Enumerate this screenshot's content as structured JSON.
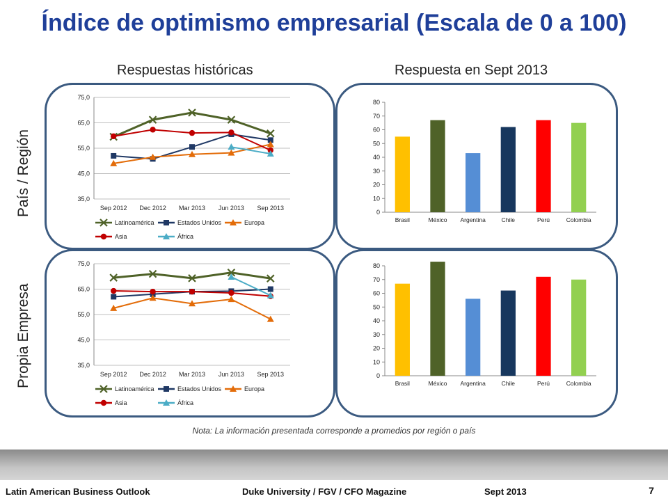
{
  "title": "Índice de optimismo empresarial (Escala de 0 a 100)",
  "subtitles": {
    "left": "Respuestas históricas",
    "right": "Respuesta en Sept 2013"
  },
  "side_labels": {
    "top": "País / Región",
    "bottom": "Propia Empresa"
  },
  "note": "Nota: La información presentada corresponde a promedios por región o país",
  "footer": {
    "left": "Latin American Business Outlook",
    "center": "Duke University / FGV / CFO Magazine",
    "right": "Sept 2013",
    "page": "7"
  },
  "colors": {
    "Latinoamérica": "#4f6228",
    "Estados Unidos": "#1f3864",
    "Europa": "#e36c09",
    "Asia": "#c00000",
    "África": "#4bacc6",
    "panel_border": "#3b5a80",
    "title": "#1f3f99"
  },
  "chart_data": [
    {
      "id": "hist-pais",
      "type": "line",
      "categories": [
        "Sep 2012",
        "Dec 2012",
        "Mar 2013",
        "Jun 2013",
        "Sep 2013"
      ],
      "ylim": [
        35,
        75
      ],
      "yticks": [
        "75,0",
        "65,0",
        "55,0",
        "45,0",
        "35,0"
      ],
      "series": [
        {
          "name": "Latinoamérica",
          "marker": "x",
          "values": [
            59.5,
            66.2,
            69.0,
            66.2,
            60.8
          ]
        },
        {
          "name": "Estados Unidos",
          "marker": "square",
          "values": [
            52.0,
            50.8,
            55.5,
            60.5,
            58.2
          ]
        },
        {
          "name": "Europa",
          "marker": "triangle",
          "values": [
            49.0,
            51.5,
            52.6,
            53.2,
            56.5
          ]
        },
        {
          "name": "Asia",
          "marker": "circle",
          "values": [
            59.7,
            62.3,
            61.0,
            61.2,
            54.2
          ]
        },
        {
          "name": "África",
          "marker": "triangle",
          "values": [
            null,
            null,
            null,
            55.5,
            52.8
          ]
        }
      ],
      "legend": "bottom"
    },
    {
      "id": "sept-pais",
      "type": "bar",
      "categories": [
        "Brasil",
        "México",
        "Argentina",
        "Chile",
        "Perú",
        "Colombia"
      ],
      "values": [
        55,
        67,
        43,
        62,
        67,
        65
      ],
      "colors": [
        "#ffc000",
        "#4f6228",
        "#558ed5",
        "#17375e",
        "#ff0000",
        "#92d050"
      ],
      "ylim": [
        0,
        80
      ],
      "yticks": [
        "80",
        "70",
        "60",
        "50",
        "40",
        "30",
        "20",
        "10",
        "0"
      ]
    },
    {
      "id": "hist-empresa",
      "type": "line",
      "categories": [
        "Sep 2012",
        "Dec 2012",
        "Mar 2013",
        "Jun 2013",
        "Sep 2013"
      ],
      "ylim": [
        35,
        75
      ],
      "yticks": [
        "75,0",
        "65,0",
        "55,0",
        "45,0",
        "35,0"
      ],
      "series": [
        {
          "name": "Latinoamérica",
          "marker": "x",
          "values": [
            69.5,
            71.0,
            69.3,
            71.5,
            69.2
          ]
        },
        {
          "name": "Estados Unidos",
          "marker": "square",
          "values": [
            62.0,
            63.0,
            64.0,
            64.2,
            65.0
          ]
        },
        {
          "name": "Europa",
          "marker": "triangle",
          "values": [
            57.5,
            61.5,
            59.3,
            61.0,
            53.2
          ]
        },
        {
          "name": "Asia",
          "marker": "circle",
          "values": [
            64.3,
            64.0,
            64.0,
            63.5,
            62.2
          ]
        },
        {
          "name": "África",
          "marker": "triangle",
          "values": [
            null,
            null,
            null,
            69.8,
            62.5
          ]
        }
      ],
      "legend": "bottom"
    },
    {
      "id": "sept-empresa",
      "type": "bar",
      "categories": [
        "Brasil",
        "México",
        "Argentina",
        "Chile",
        "Perú",
        "Colombia"
      ],
      "values": [
        67,
        83,
        56,
        62,
        72,
        70
      ],
      "colors": [
        "#ffc000",
        "#4f6228",
        "#558ed5",
        "#17375e",
        "#ff0000",
        "#92d050"
      ],
      "ylim": [
        0,
        80
      ],
      "yticks": [
        "80",
        "70",
        "60",
        "50",
        "40",
        "30",
        "20",
        "10",
        "0"
      ]
    }
  ]
}
